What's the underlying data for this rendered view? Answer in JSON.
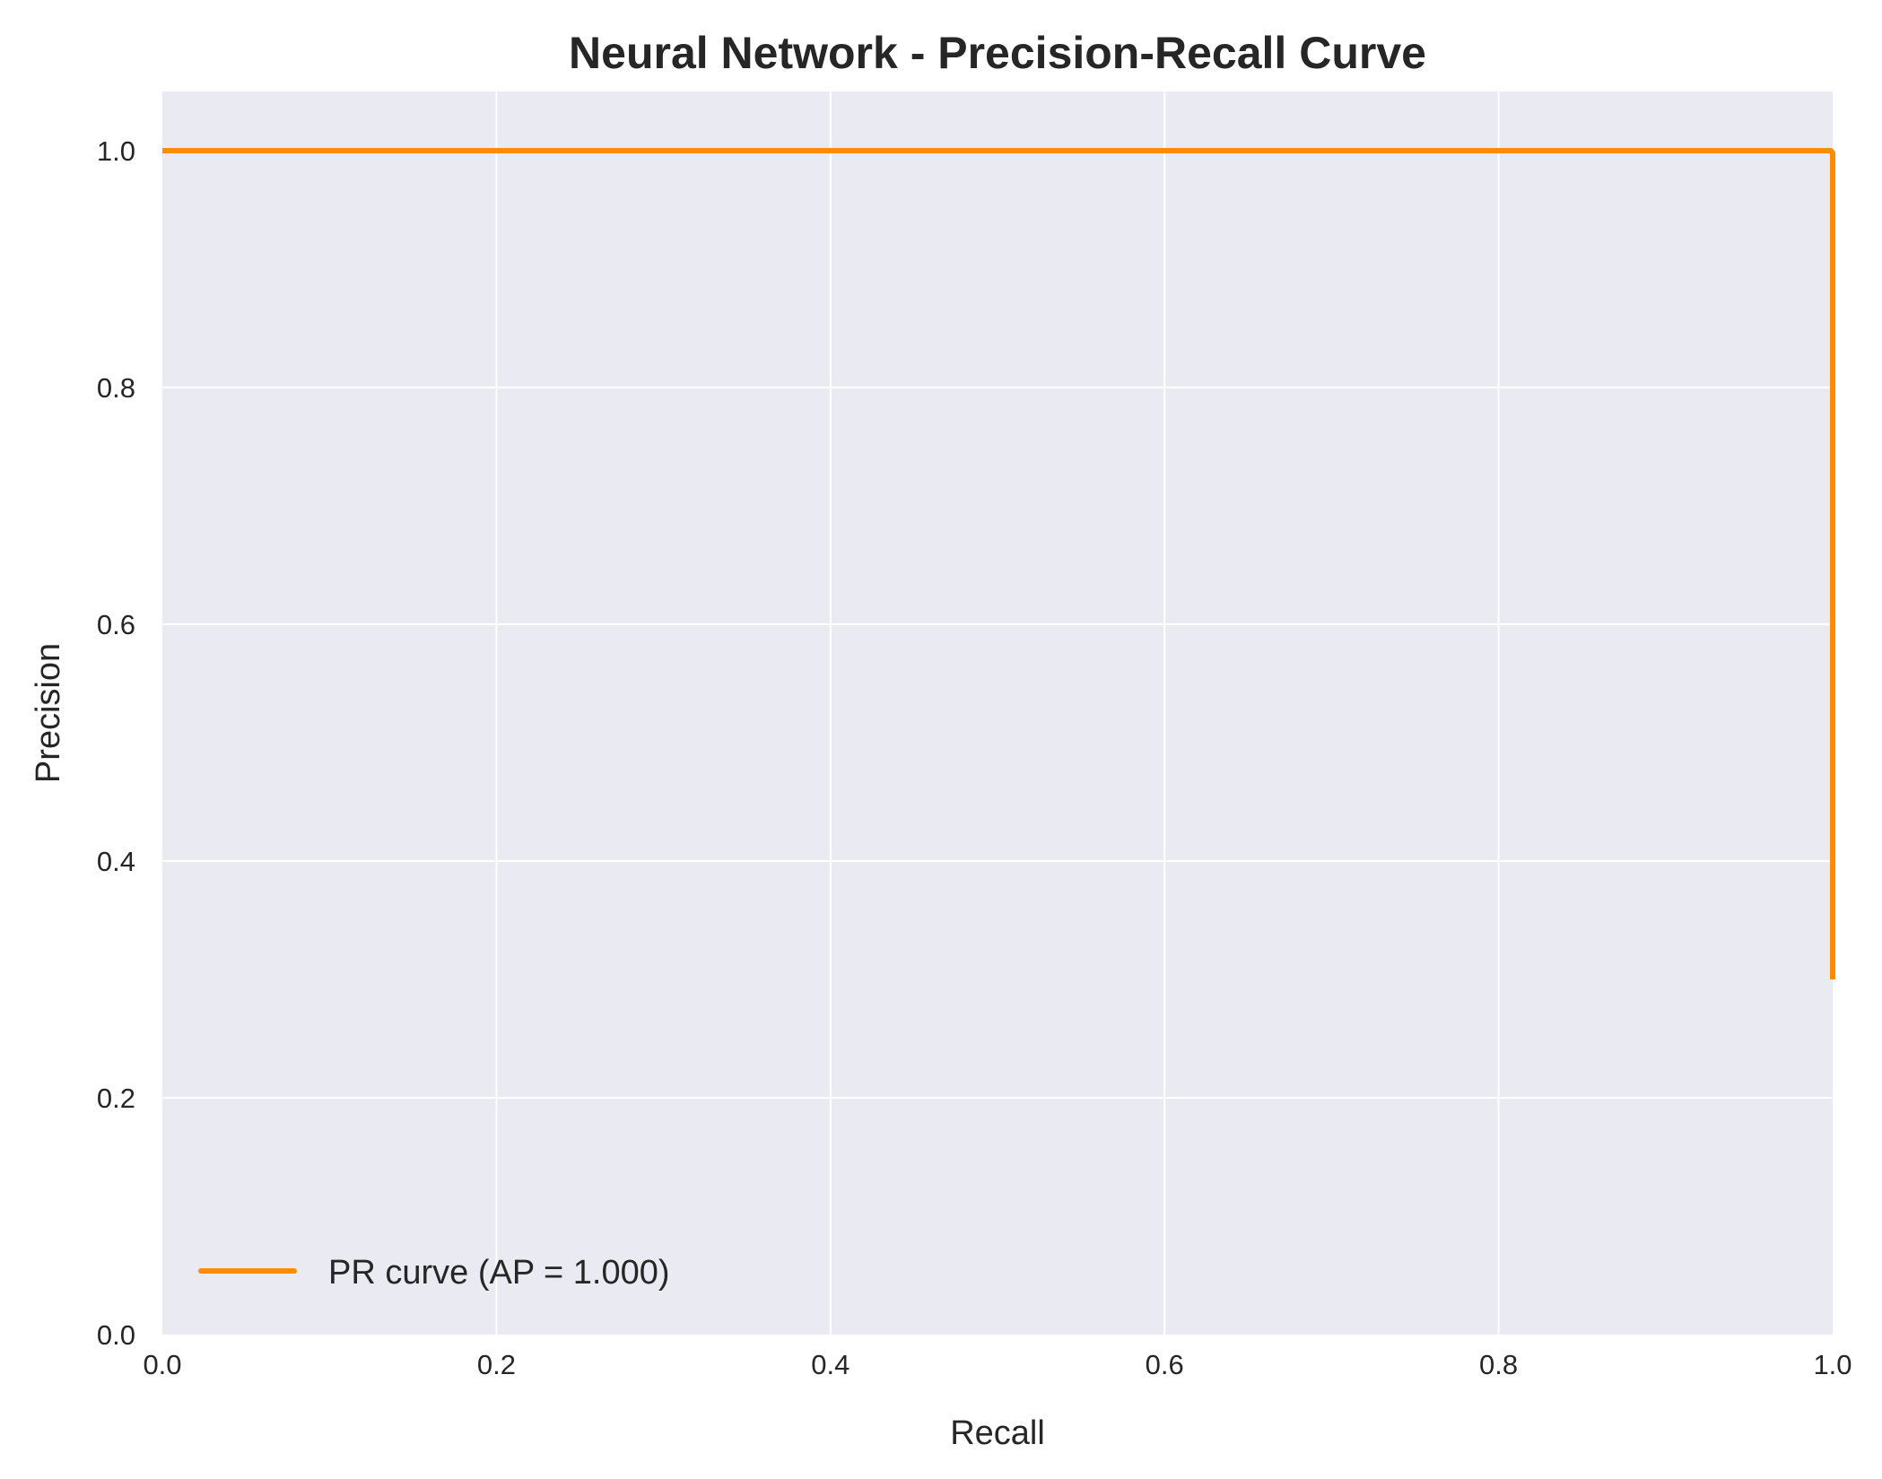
{
  "chart_data": {
    "type": "line",
    "title": "Neural Network - Precision-Recall Curve",
    "xlabel": "Recall",
    "ylabel": "Precision",
    "xlim": [
      0.0,
      1.0
    ],
    "ylim": [
      0.0,
      1.05
    ],
    "xticks": [
      "0.0",
      "0.2",
      "0.4",
      "0.6",
      "0.8",
      "1.0"
    ],
    "yticks": [
      "0.0",
      "0.2",
      "0.4",
      "0.6",
      "0.8",
      "1.0"
    ],
    "grid": true,
    "legend_position": "lower-left",
    "series": [
      {
        "name": "PR curve (AP = 1.000)",
        "color": "#ff8c00",
        "x": [
          0.0,
          0.997,
          0.999,
          1.0,
          1.0,
          1.0
        ],
        "y": [
          1.0,
          1.0,
          1.0,
          0.998,
          0.98,
          0.3
        ]
      }
    ]
  },
  "colors": {
    "plot_background": "#eaeaf2",
    "grid": "#ffffff",
    "text": "#262626"
  }
}
